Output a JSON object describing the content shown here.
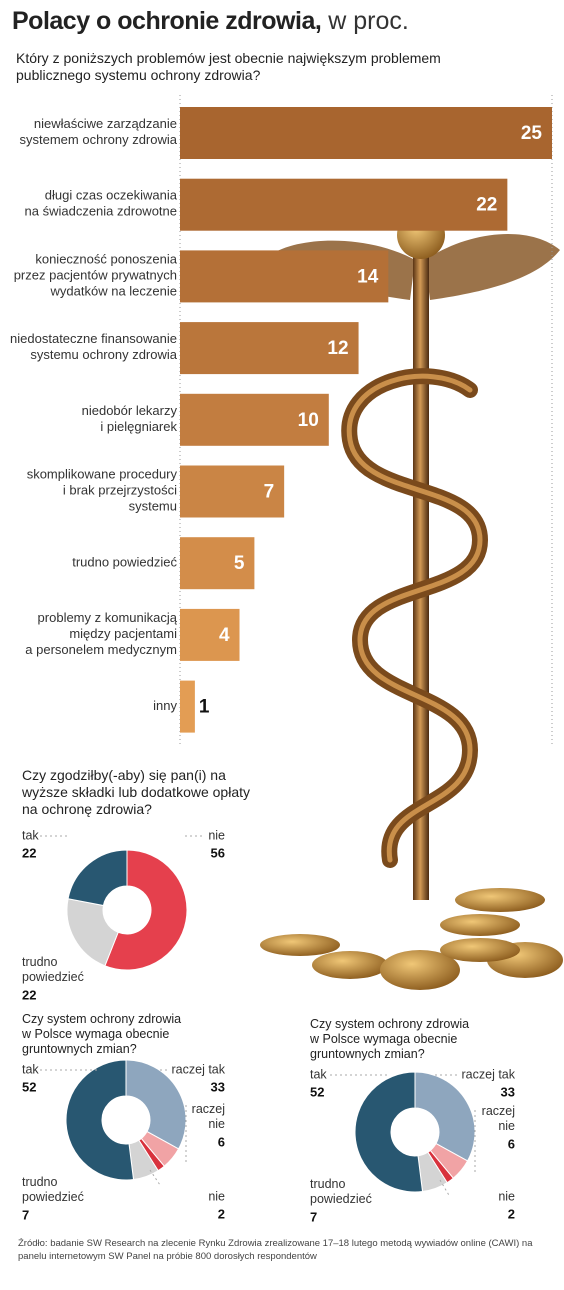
{
  "title": "Polacy o ochronie zdrowia,",
  "unit": "w proc.",
  "source": "Źródło: badanie SW Research na zlecenie Rynku Zdrowia zrealizowane 17–18 lutego metodą wywiadów online (CAWI) na panelu internetowym SW Panel na próbie 800 dorosłych respondentów",
  "chart_data": [
    {
      "type": "bar",
      "orientation": "horizontal",
      "title": "Który z poniższych problemów jest obecnie największym problemem publicznego systemu ochrony zdrowia?",
      "categories": [
        "niewłaściwe zarządzanie\nsystemem ochrony zdrowia",
        "długi czas oczekiwania\nna świadczenia zdrowotne",
        "konieczność ponoszenia\nprzez pacjentów prywatnych\nwydatków na leczenie",
        "niedostateczne finansowanie\nsystemu ochrony zdrowia",
        "niedobór lekarzy\ni pielęgniarek",
        "skomplikowane procedury\ni brak przejrzystości\nsystemu",
        "trudno powiedzieć",
        "problemy z komunikacją\nmiędzy pacjentami\na personelem medycznym",
        "inny"
      ],
      "values": [
        25,
        22,
        14,
        12,
        10,
        7,
        5,
        4,
        1
      ],
      "colors": [
        "#a8652f",
        "#ad6a33",
        "#b47037",
        "#ba763b",
        "#c27d40",
        "#ca8545",
        "#d38d4a",
        "#dc964f",
        "#e39d54"
      ],
      "xlim": [
        0,
        25
      ]
    },
    {
      "type": "pie",
      "title": "Czy zgodziłby(-aby) się pan(i) na wyższe składki lub dodatkowe opłaty na ochronę zdrowia?",
      "series": [
        {
          "name": "nie",
          "value": 56,
          "color": "#e5404d"
        },
        {
          "name": "trudno\npowiedzieć",
          "value": 22,
          "color": "#d4d4d4"
        },
        {
          "name": "tak",
          "value": 22,
          "color": "#285771"
        }
      ]
    },
    {
      "type": "pie",
      "title": "Czy system ochrony zdrowia w Polsce wymaga obecnie gruntownych zmian?",
      "series": [
        {
          "name": "raczej tak",
          "value": 33,
          "color": "#8ea6be"
        },
        {
          "name": "raczej\nnie",
          "value": 6,
          "color": "#f1a3a5"
        },
        {
          "name": "nie",
          "value": 2,
          "color": "#d8323d"
        },
        {
          "name": "trudno\npowiedzieć",
          "value": 7,
          "color": "#d4d4d4"
        },
        {
          "name": "tak",
          "value": 52,
          "color": "#285771"
        }
      ]
    },
    {
      "type": "pie",
      "title": "Czy system ochrony zdrowia w Polsce wymaga obecnie gruntownych zmian?",
      "series": [
        {
          "name": "raczej tak",
          "value": 33,
          "color": "#8ea6be"
        },
        {
          "name": "raczej\nnie",
          "value": 6,
          "color": "#f1a3a5"
        },
        {
          "name": "nie",
          "value": 2,
          "color": "#d8323d"
        },
        {
          "name": "trudno\npowiedzieć",
          "value": 7,
          "color": "#d4d4d4"
        },
        {
          "name": "tak",
          "value": 52,
          "color": "#285771"
        }
      ]
    }
  ]
}
